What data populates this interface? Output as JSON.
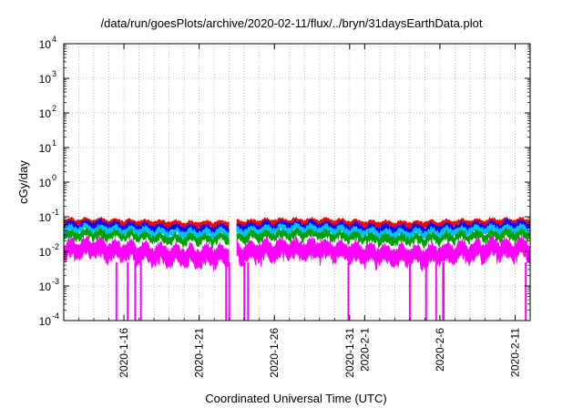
{
  "chart_data": {
    "type": "area",
    "title": "/data/run/goesPlots/archive/2020-02-11/flux/../bryn/31daysEarthData.plot",
    "xlabel": "Coordinated Universal Time (UTC)",
    "ylabel": "cGy/day",
    "y_scale": "log",
    "ylim": [
      0.0001,
      10000
    ],
    "y_ticks": [
      {
        "base": "10",
        "exp": "-4",
        "value": 0.0001
      },
      {
        "base": "10",
        "exp": "-3",
        "value": 0.001
      },
      {
        "base": "10",
        "exp": "-2",
        "value": 0.01
      },
      {
        "base": "10",
        "exp": "-1",
        "value": 0.1
      },
      {
        "base": "10",
        "exp": "0",
        "value": 1
      },
      {
        "base": "10",
        "exp": "1",
        "value": 10
      },
      {
        "base": "10",
        "exp": "2",
        "value": 100
      },
      {
        "base": "10",
        "exp": "3",
        "value": 1000
      },
      {
        "base": "10",
        "exp": "4",
        "value": 10000
      }
    ],
    "xlim": [
      "2020-01-12",
      "2020-02-12"
    ],
    "x_ticks": [
      "2020-1-16",
      "2020-1-21",
      "2020-1-26",
      "2020-1-31",
      "2020-2-1",
      "2020-2-6",
      "2020-2-11"
    ],
    "grid": true,
    "legend": "none",
    "gaps": [
      [
        "2020-01-23T00:00",
        "2020-01-23T12:00"
      ]
    ],
    "series": [
      {
        "color": "#ff0000",
        "typical": 0.06,
        "peak": 0.1
      },
      {
        "color": "#0000ff",
        "typical": 0.04,
        "peak": 0.09
      },
      {
        "color": "#00c0ff",
        "typical": 0.03,
        "peak": 0.07
      },
      {
        "color": "#00a000",
        "typical": 0.02,
        "peak": 0.05
      },
      {
        "color": "#ff00ff",
        "typical": 0.008,
        "peak": 0.03,
        "min": 0.0001,
        "dropouts": [
          "2020-01-15T12:00",
          "2020-01-16T06:00",
          "2020-01-16T18:00",
          "2020-01-17T03:00",
          "2020-01-22T19:00",
          "2020-01-23T00:00",
          "2020-01-24T00:00",
          "2020-01-24T06:00",
          "2020-01-30T22:00",
          "2020-02-04T00:00",
          "2020-02-05T02:00",
          "2020-02-05T18:00",
          "2020-02-06T05:00",
          "2020-02-06T06:00",
          "2020-02-11T17:00"
        ]
      }
    ]
  }
}
